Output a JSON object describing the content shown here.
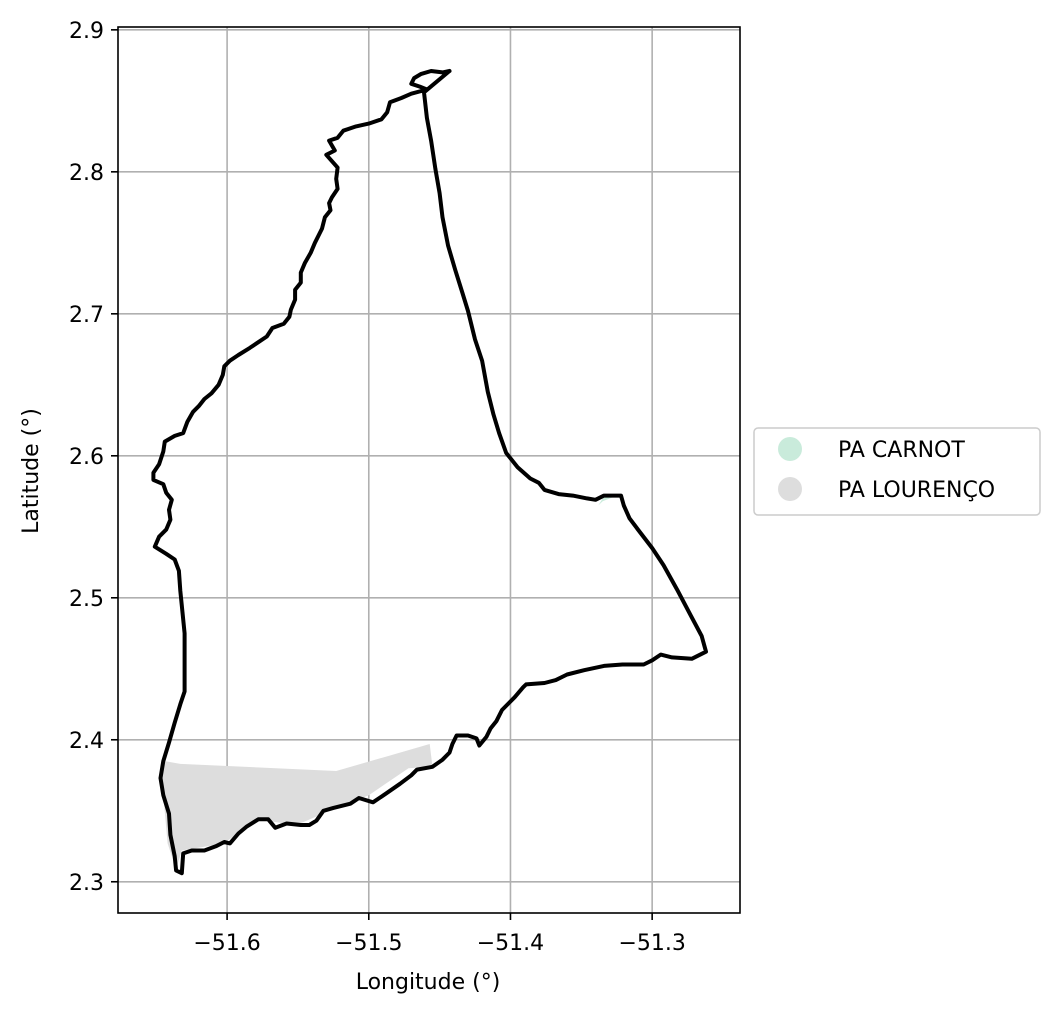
{
  "chart_data": {
    "type": "map",
    "title": "",
    "xlabel": "Longitude (°)",
    "ylabel": "Latitude (°)",
    "xlim": [
      -51.677,
      -51.238
    ],
    "ylim": [
      2.278,
      2.902
    ],
    "grid": true,
    "legend_placement": "center-right, outside plot",
    "x_ticks": [
      {
        "value": -51.6,
        "label": "−51.6"
      },
      {
        "value": -51.5,
        "label": "−51.5"
      },
      {
        "value": -51.4,
        "label": "−51.4"
      },
      {
        "value": -51.3,
        "label": "−51.3"
      }
    ],
    "y_ticks": [
      {
        "value": 2.3,
        "label": "2.3"
      },
      {
        "value": 2.4,
        "label": "2.4"
      },
      {
        "value": 2.5,
        "label": "2.5"
      },
      {
        "value": 2.6,
        "label": "2.6"
      },
      {
        "value": 2.7,
        "label": "2.7"
      },
      {
        "value": 2.8,
        "label": "2.8"
      },
      {
        "value": 2.9,
        "label": "2.9"
      }
    ],
    "legend": [
      {
        "name": "PA CARNOT",
        "color": "#c9ebdb"
      },
      {
        "name": "PA LOURENÇO",
        "color": "#dddddd"
      }
    ],
    "areas": [
      {
        "name": "PA CARNOT",
        "color": "#c9ebdb",
        "coordinates": [
          [
            -51.338,
            2.565
          ],
          [
            -51.333,
            2.573
          ],
          [
            -51.322,
            2.573
          ],
          [
            -51.335,
            2.568
          ]
        ]
      },
      {
        "name": "PA LOURENÇO",
        "color": "#dddddd",
        "coordinates": [
          [
            -51.644,
            2.385
          ],
          [
            -51.633,
            2.383
          ],
          [
            -51.523,
            2.378
          ],
          [
            -51.457,
            2.397
          ],
          [
            -51.455,
            2.381
          ],
          [
            -51.472,
            2.38
          ],
          [
            -51.5,
            2.361
          ],
          [
            -51.525,
            2.351
          ],
          [
            -51.551,
            2.34
          ],
          [
            -51.58,
            2.344
          ],
          [
            -51.602,
            2.327
          ],
          [
            -51.632,
            2.322
          ],
          [
            -51.636,
            2.309
          ],
          [
            -51.642,
            2.327
          ],
          [
            -51.646,
            2.372
          ]
        ]
      }
    ],
    "boundary": {
      "color": "#000000",
      "coordinates": [
        [
          -51.443,
          2.871
        ],
        [
          -51.448,
          2.87
        ],
        [
          -51.456,
          2.871
        ],
        [
          -51.463,
          2.869
        ],
        [
          -51.468,
          2.866
        ],
        [
          -51.47,
          2.862
        ],
        [
          -51.464,
          2.86
        ],
        [
          -51.459,
          2.858
        ],
        [
          -51.47,
          2.855
        ],
        [
          -51.477,
          2.852
        ],
        [
          -51.485,
          2.849
        ],
        [
          -51.487,
          2.842
        ],
        [
          -51.491,
          2.837
        ],
        [
          -51.5,
          2.834
        ],
        [
          -51.509,
          2.832
        ],
        [
          -51.518,
          2.829
        ],
        [
          -51.522,
          2.824
        ],
        [
          -51.528,
          2.822
        ],
        [
          -51.524,
          2.815
        ],
        [
          -51.53,
          2.812
        ],
        [
          -51.522,
          2.803
        ],
        [
          -51.523,
          2.795
        ],
        [
          -51.522,
          2.788
        ],
        [
          -51.526,
          2.782
        ],
        [
          -51.528,
          2.778
        ],
        [
          -51.527,
          2.773
        ],
        [
          -51.531,
          2.768
        ],
        [
          -51.533,
          2.76
        ],
        [
          -51.538,
          2.75
        ],
        [
          -51.541,
          2.743
        ],
        [
          -51.545,
          2.736
        ],
        [
          -51.548,
          2.729
        ],
        [
          -51.548,
          2.722
        ],
        [
          -51.552,
          2.717
        ],
        [
          -51.552,
          2.71
        ],
        [
          -51.555,
          2.703
        ],
        [
          -51.556,
          2.698
        ],
        [
          -51.56,
          2.693
        ],
        [
          -51.568,
          2.69
        ],
        [
          -51.572,
          2.684
        ],
        [
          -51.578,
          2.68
        ],
        [
          -51.584,
          2.676
        ],
        [
          -51.592,
          2.671
        ],
        [
          -51.598,
          2.667
        ],
        [
          -51.602,
          2.663
        ],
        [
          -51.603,
          2.657
        ],
        [
          -51.606,
          2.65
        ],
        [
          -51.611,
          2.644
        ],
        [
          -51.616,
          2.64
        ],
        [
          -51.62,
          2.635
        ],
        [
          -51.624,
          2.631
        ],
        [
          -51.628,
          2.624
        ],
        [
          -51.631,
          2.616
        ],
        [
          -51.637,
          2.614
        ],
        [
          -51.644,
          2.61
        ],
        [
          -51.645,
          2.603
        ],
        [
          -51.648,
          2.594
        ],
        [
          -51.652,
          2.588
        ],
        [
          -51.652,
          2.583
        ],
        [
          -51.645,
          2.58
        ],
        [
          -51.643,
          2.574
        ],
        [
          -51.639,
          2.569
        ],
        [
          -51.641,
          2.562
        ],
        [
          -51.64,
          2.555
        ],
        [
          -51.643,
          2.548
        ],
        [
          -51.648,
          2.543
        ],
        [
          -51.651,
          2.536
        ],
        [
          -51.643,
          2.531
        ],
        [
          -51.637,
          2.527
        ],
        [
          -51.634,
          2.519
        ],
        [
          -51.633,
          2.505
        ],
        [
          -51.63,
          2.475
        ],
        [
          -51.63,
          2.434
        ],
        [
          -51.633,
          2.425
        ],
        [
          -51.637,
          2.412
        ],
        [
          -51.641,
          2.398
        ],
        [
          -51.645,
          2.385
        ],
        [
          -51.647,
          2.373
        ],
        [
          -51.645,
          2.361
        ],
        [
          -51.641,
          2.348
        ],
        [
          -51.64,
          2.333
        ],
        [
          -51.637,
          2.318
        ],
        [
          -51.636,
          2.308
        ],
        [
          -51.632,
          2.306
        ],
        [
          -51.631,
          2.32
        ],
        [
          -51.625,
          2.322
        ],
        [
          -51.616,
          2.322
        ],
        [
          -51.608,
          2.325
        ],
        [
          -51.602,
          2.328
        ],
        [
          -51.598,
          2.327
        ],
        [
          -51.592,
          2.334
        ],
        [
          -51.586,
          2.339
        ],
        [
          -51.578,
          2.344
        ],
        [
          -51.571,
          2.344
        ],
        [
          -51.566,
          2.338
        ],
        [
          -51.558,
          2.341
        ],
        [
          -51.548,
          2.34
        ],
        [
          -51.542,
          2.34
        ],
        [
          -51.537,
          2.343
        ],
        [
          -51.532,
          2.35
        ],
        [
          -51.525,
          2.352
        ],
        [
          -51.513,
          2.355
        ],
        [
          -51.507,
          2.359
        ],
        [
          -51.497,
          2.356
        ],
        [
          -51.488,
          2.362
        ],
        [
          -51.478,
          2.369
        ],
        [
          -51.47,
          2.375
        ],
        [
          -51.466,
          2.379
        ],
        [
          -51.455,
          2.381
        ],
        [
          -51.448,
          2.386
        ],
        [
          -51.443,
          2.391
        ],
        [
          -51.441,
          2.397
        ],
        [
          -51.438,
          2.403
        ],
        [
          -51.43,
          2.403
        ],
        [
          -51.424,
          2.401
        ],
        [
          -51.422,
          2.396
        ],
        [
          -51.417,
          2.402
        ],
        [
          -51.414,
          2.408
        ],
        [
          -51.41,
          2.413
        ],
        [
          -51.406,
          2.421
        ],
        [
          -51.397,
          2.43
        ],
        [
          -51.391,
          2.437
        ],
        [
          -51.389,
          2.439
        ],
        [
          -51.376,
          2.44
        ],
        [
          -51.368,
          2.442
        ],
        [
          -51.36,
          2.446
        ],
        [
          -51.348,
          2.449
        ],
        [
          -51.334,
          2.452
        ],
        [
          -51.321,
          2.453
        ],
        [
          -51.306,
          2.453
        ],
        [
          -51.3,
          2.456
        ],
        [
          -51.294,
          2.46
        ],
        [
          -51.286,
          2.458
        ],
        [
          -51.272,
          2.457
        ],
        [
          -51.262,
          2.462
        ],
        [
          -51.265,
          2.473
        ],
        [
          -51.273,
          2.488
        ],
        [
          -51.282,
          2.505
        ],
        [
          -51.292,
          2.523
        ],
        [
          -51.3,
          2.535
        ],
        [
          -51.31,
          2.548
        ],
        [
          -51.316,
          2.556
        ],
        [
          -51.32,
          2.565
        ],
        [
          -51.322,
          2.572
        ],
        [
          -51.334,
          2.572
        ],
        [
          -51.34,
          2.569
        ],
        [
          -51.346,
          2.57
        ],
        [
          -51.356,
          2.572
        ],
        [
          -51.366,
          2.573
        ],
        [
          -51.376,
          2.576
        ],
        [
          -51.38,
          2.581
        ],
        [
          -51.386,
          2.584
        ],
        [
          -51.395,
          2.592
        ],
        [
          -51.403,
          2.602
        ],
        [
          -51.408,
          2.616
        ],
        [
          -51.412,
          2.629
        ],
        [
          -51.416,
          2.645
        ],
        [
          -51.42,
          2.667
        ],
        [
          -51.425,
          2.682
        ],
        [
          -51.43,
          2.702
        ],
        [
          -51.434,
          2.715
        ],
        [
          -51.439,
          2.731
        ],
        [
          -51.444,
          2.748
        ],
        [
          -51.448,
          2.768
        ],
        [
          -51.45,
          2.785
        ],
        [
          -51.453,
          2.802
        ],
        [
          -51.456,
          2.822
        ],
        [
          -51.459,
          2.838
        ],
        [
          -51.461,
          2.856
        ],
        [
          -51.443,
          2.871
        ]
      ]
    }
  }
}
